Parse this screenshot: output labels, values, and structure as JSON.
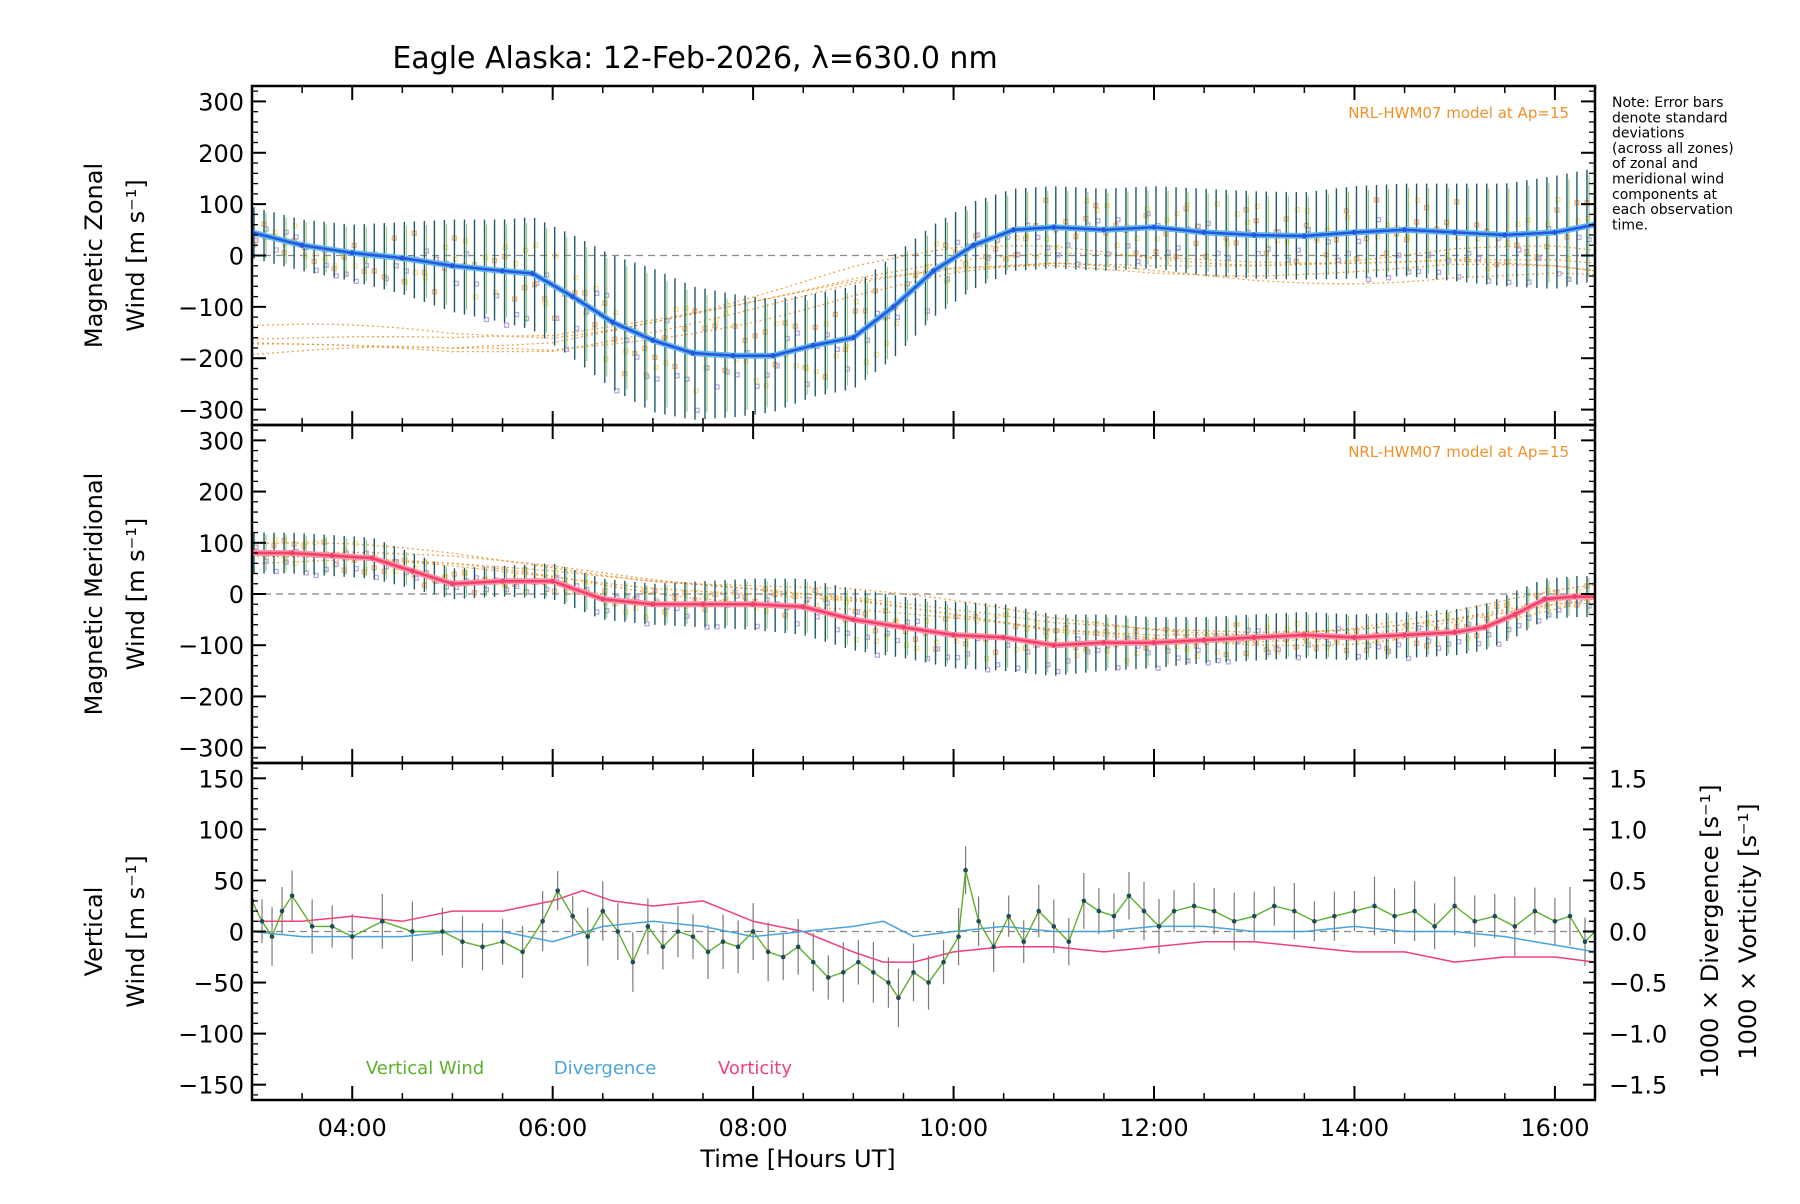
{
  "chart_data": {
    "type": "line",
    "title": "Eagle Alaska: 12-Feb-2026, λ=630.0 nm",
    "xlabel": "Time [Hours UT]",
    "xlim": [
      3.0,
      16.4
    ],
    "xticks": [
      4,
      6,
      8,
      10,
      12,
      14,
      16
    ],
    "xtick_labels": [
      "04:00",
      "06:00",
      "08:00",
      "10:00",
      "12:00",
      "14:00",
      "16:00"
    ],
    "note": [
      "Note: Error bars",
      "denote standard",
      "deviations",
      "(across all zones)",
      "of zonal and",
      "meridional wind",
      "components at",
      "each observation",
      "time."
    ],
    "colors": {
      "zonal": "#2456e0",
      "zonal_light": "#5fb6e8",
      "meridional": "#f0406a",
      "meridional_light": "#ff90a8",
      "model": "#f0902a",
      "vertical": "#5caf2a",
      "divergence": "#4aa3dc",
      "vorticity": "#f0407a",
      "errbar": "#1e5a6a",
      "scatter_purple": "#b9a8e0",
      "scatter_orange": "#f8b070",
      "scatter_yellow": "#f8e090"
    },
    "panels": [
      {
        "name": "zonal",
        "ylabel_line1": "Magnetic Zonal",
        "ylabel_line2": "Wind [m s⁻¹]",
        "ylim": [
          -330,
          330
        ],
        "yticks": [
          -300,
          -200,
          -100,
          0,
          100,
          200,
          300
        ],
        "ytick_labels": [
          "−300",
          "−200",
          "−100",
          "0",
          "100",
          "200",
          "300"
        ],
        "model_label": "NRL-HWM07 model at Ap=15",
        "series": [
          {
            "name": "Zonal wind",
            "x": [
              3.0,
              3.5,
              4.0,
              4.5,
              5.0,
              5.5,
              5.8,
              6.2,
              6.6,
              7.0,
              7.4,
              7.8,
              8.2,
              8.6,
              9.0,
              9.4,
              9.8,
              10.2,
              10.6,
              11.0,
              11.5,
              12.0,
              12.5,
              13.0,
              13.5,
              14.0,
              14.5,
              15.0,
              15.5,
              16.0,
              16.4
            ],
            "y": [
              45,
              20,
              5,
              -5,
              -20,
              -30,
              -35,
              -80,
              -130,
              -165,
              -190,
              -195,
              -195,
              -175,
              -160,
              -100,
              -30,
              20,
              50,
              55,
              50,
              55,
              45,
              40,
              38,
              45,
              50,
              45,
              40,
              45,
              60
            ],
            "err": [
              50,
              50,
              55,
              70,
              90,
              100,
              110,
              120,
              130,
              140,
              130,
              120,
              110,
              100,
              100,
              100,
              90,
              85,
              80,
              80,
              80,
              80,
              85,
              85,
              85,
              90,
              90,
              95,
              100,
              110,
              110
            ]
          },
          {
            "name": "Model",
            "x": [
              3.0,
              4.0,
              5.0,
              6.0,
              7.0,
              8.0,
              9.0,
              10.0,
              11.0,
              12.0,
              13.0,
              14.0,
              15.0,
              16.0,
              16.4
            ],
            "y": [
              -170,
              -175,
              -180,
              -170,
              -130,
              -90,
              -50,
              -25,
              -15,
              -20,
              -20,
              -15,
              -10,
              -20,
              -30
            ]
          }
        ]
      },
      {
        "name": "meridional",
        "ylabel_line1": "Magnetic Meridional",
        "ylabel_line2": "Wind [m s⁻¹]",
        "ylim": [
          -330,
          330
        ],
        "yticks": [
          -300,
          -200,
          -100,
          0,
          100,
          200,
          300
        ],
        "ytick_labels": [
          "−300",
          "−200",
          "−100",
          "0",
          "100",
          "200",
          "300"
        ],
        "model_label": "NRL-HWM07 model at Ap=15",
        "series": [
          {
            "name": "Meridional wind",
            "x": [
              3.0,
              3.4,
              3.8,
              4.2,
              4.6,
              5.0,
              5.5,
              6.0,
              6.5,
              7.0,
              7.5,
              8.0,
              8.5,
              9.0,
              9.5,
              10.0,
              10.5,
              11.0,
              11.5,
              12.0,
              12.5,
              13.0,
              13.5,
              14.0,
              14.5,
              15.0,
              15.3,
              15.6,
              15.9,
              16.2,
              16.4
            ],
            "y": [
              80,
              80,
              75,
              70,
              45,
              20,
              25,
              25,
              -10,
              -20,
              -20,
              -20,
              -25,
              -50,
              -65,
              -80,
              -85,
              -100,
              -95,
              -95,
              -90,
              -85,
              -80,
              -85,
              -80,
              -75,
              -65,
              -40,
              -10,
              -5,
              -5
            ],
            "err": [
              40,
              40,
              40,
              40,
              35,
              30,
              30,
              35,
              40,
              40,
              45,
              50,
              55,
              60,
              60,
              65,
              65,
              60,
              55,
              50,
              45,
              45,
              45,
              45,
              45,
              45,
              45,
              45,
              40,
              40,
              40
            ]
          },
          {
            "name": "Model",
            "x": [
              3.0,
              4.0,
              5.0,
              6.0,
              7.0,
              8.0,
              9.0,
              10.0,
              11.0,
              12.0,
              13.0,
              14.0,
              15.0,
              16.0,
              16.4
            ],
            "y": [
              75,
              70,
              60,
              45,
              25,
              10,
              -10,
              -40,
              -70,
              -80,
              -80,
              -70,
              -50,
              -20,
              -10
            ]
          }
        ]
      },
      {
        "name": "vertical",
        "ylabel_line1": "Vertical",
        "ylabel_line2": "Wind [m s⁻¹]",
        "ylim": [
          -165,
          165
        ],
        "yticks": [
          -150,
          -100,
          -50,
          0,
          50,
          100,
          150
        ],
        "ytick_labels": [
          "−150",
          "−100",
          "−50",
          "0",
          "50",
          "100",
          "150"
        ],
        "right_ylim": [
          -1.65,
          1.65
        ],
        "right_yticks": [
          -1.5,
          -1.0,
          -0.5,
          0.0,
          0.5,
          1.0,
          1.5
        ],
        "right_ytick_labels": [
          "−1.5",
          "−1.0",
          "−0.5",
          "0.0",
          "0.5",
          "1.0",
          "1.5"
        ],
        "right_ylabel_1": "1000 × Divergence [s⁻¹]",
        "right_ylabel_2": "1000 × Vorticity [s⁻¹]",
        "legend": [
          "Vertical Wind",
          "Divergence",
          "Vorticity"
        ],
        "series": [
          {
            "name": "Vertical Wind",
            "x": [
              3.0,
              3.1,
              3.2,
              3.3,
              3.4,
              3.6,
              3.8,
              4.0,
              4.3,
              4.6,
              4.9,
              5.1,
              5.3,
              5.5,
              5.7,
              5.9,
              6.05,
              6.2,
              6.35,
              6.5,
              6.65,
              6.8,
              6.95,
              7.1,
              7.25,
              7.4,
              7.55,
              7.7,
              7.85,
              8.0,
              8.15,
              8.3,
              8.45,
              8.6,
              8.75,
              8.9,
              9.05,
              9.2,
              9.35,
              9.45,
              9.6,
              9.75,
              9.9,
              10.05,
              10.12,
              10.25,
              10.4,
              10.55,
              10.7,
              10.85,
              11.0,
              11.15,
              11.3,
              11.45,
              11.6,
              11.75,
              11.9,
              12.05,
              12.2,
              12.4,
              12.6,
              12.8,
              13.0,
              13.2,
              13.4,
              13.6,
              13.8,
              14.0,
              14.2,
              14.4,
              14.6,
              14.8,
              15.0,
              15.2,
              15.4,
              15.6,
              15.8,
              16.0,
              16.15,
              16.3,
              16.4
            ],
            "y": [
              30,
              10,
              -5,
              20,
              35,
              5,
              5,
              -5,
              10,
              0,
              0,
              -10,
              -15,
              -10,
              -20,
              10,
              40,
              15,
              -5,
              20,
              0,
              -30,
              5,
              -15,
              0,
              -5,
              -20,
              -10,
              -15,
              0,
              -20,
              -25,
              -15,
              -30,
              -45,
              -40,
              -30,
              -40,
              -50,
              -65,
              -40,
              -50,
              -30,
              -5,
              60,
              10,
              -15,
              15,
              -10,
              20,
              5,
              -10,
              30,
              20,
              15,
              35,
              20,
              5,
              20,
              25,
              20,
              10,
              15,
              25,
              20,
              10,
              15,
              20,
              25,
              15,
              20,
              5,
              25,
              10,
              15,
              5,
              20,
              10,
              15,
              -10,
              0
            ]
          },
          {
            "name": "Divergence",
            "x": [
              3.0,
              3.5,
              4.0,
              4.5,
              5.0,
              5.5,
              6.0,
              6.5,
              7.0,
              7.5,
              8.0,
              8.5,
              9.0,
              9.3,
              9.6,
              10.0,
              10.5,
              11.0,
              11.5,
              12.0,
              12.5,
              13.0,
              13.5,
              14.0,
              14.5,
              15.0,
              15.5,
              15.8,
              16.1,
              16.4
            ],
            "y": [
              0.0,
              -0.05,
              -0.05,
              -0.05,
              0.0,
              0.0,
              -0.1,
              0.05,
              0.1,
              0.05,
              -0.05,
              0.0,
              0.05,
              0.1,
              -0.05,
              0.0,
              0.05,
              0.0,
              0.0,
              0.05,
              0.05,
              0.0,
              0.0,
              0.05,
              0.0,
              0.0,
              -0.05,
              -0.1,
              -0.15,
              -0.2
            ]
          },
          {
            "name": "Vorticity",
            "x": [
              3.0,
              3.5,
              4.0,
              4.5,
              5.0,
              5.5,
              6.0,
              6.3,
              6.6,
              7.0,
              7.5,
              8.0,
              8.5,
              9.0,
              9.3,
              9.6,
              10.0,
              10.5,
              11.0,
              11.5,
              12.0,
              12.5,
              13.0,
              13.5,
              14.0,
              14.5,
              15.0,
              15.5,
              16.0,
              16.4
            ],
            "y": [
              0.1,
              0.1,
              0.15,
              0.1,
              0.2,
              0.2,
              0.3,
              0.4,
              0.3,
              0.25,
              0.3,
              0.1,
              0.0,
              -0.2,
              -0.3,
              -0.3,
              -0.2,
              -0.15,
              -0.15,
              -0.2,
              -0.15,
              -0.1,
              -0.1,
              -0.15,
              -0.2,
              -0.2,
              -0.3,
              -0.25,
              -0.25,
              -0.3
            ]
          }
        ]
      }
    ]
  }
}
